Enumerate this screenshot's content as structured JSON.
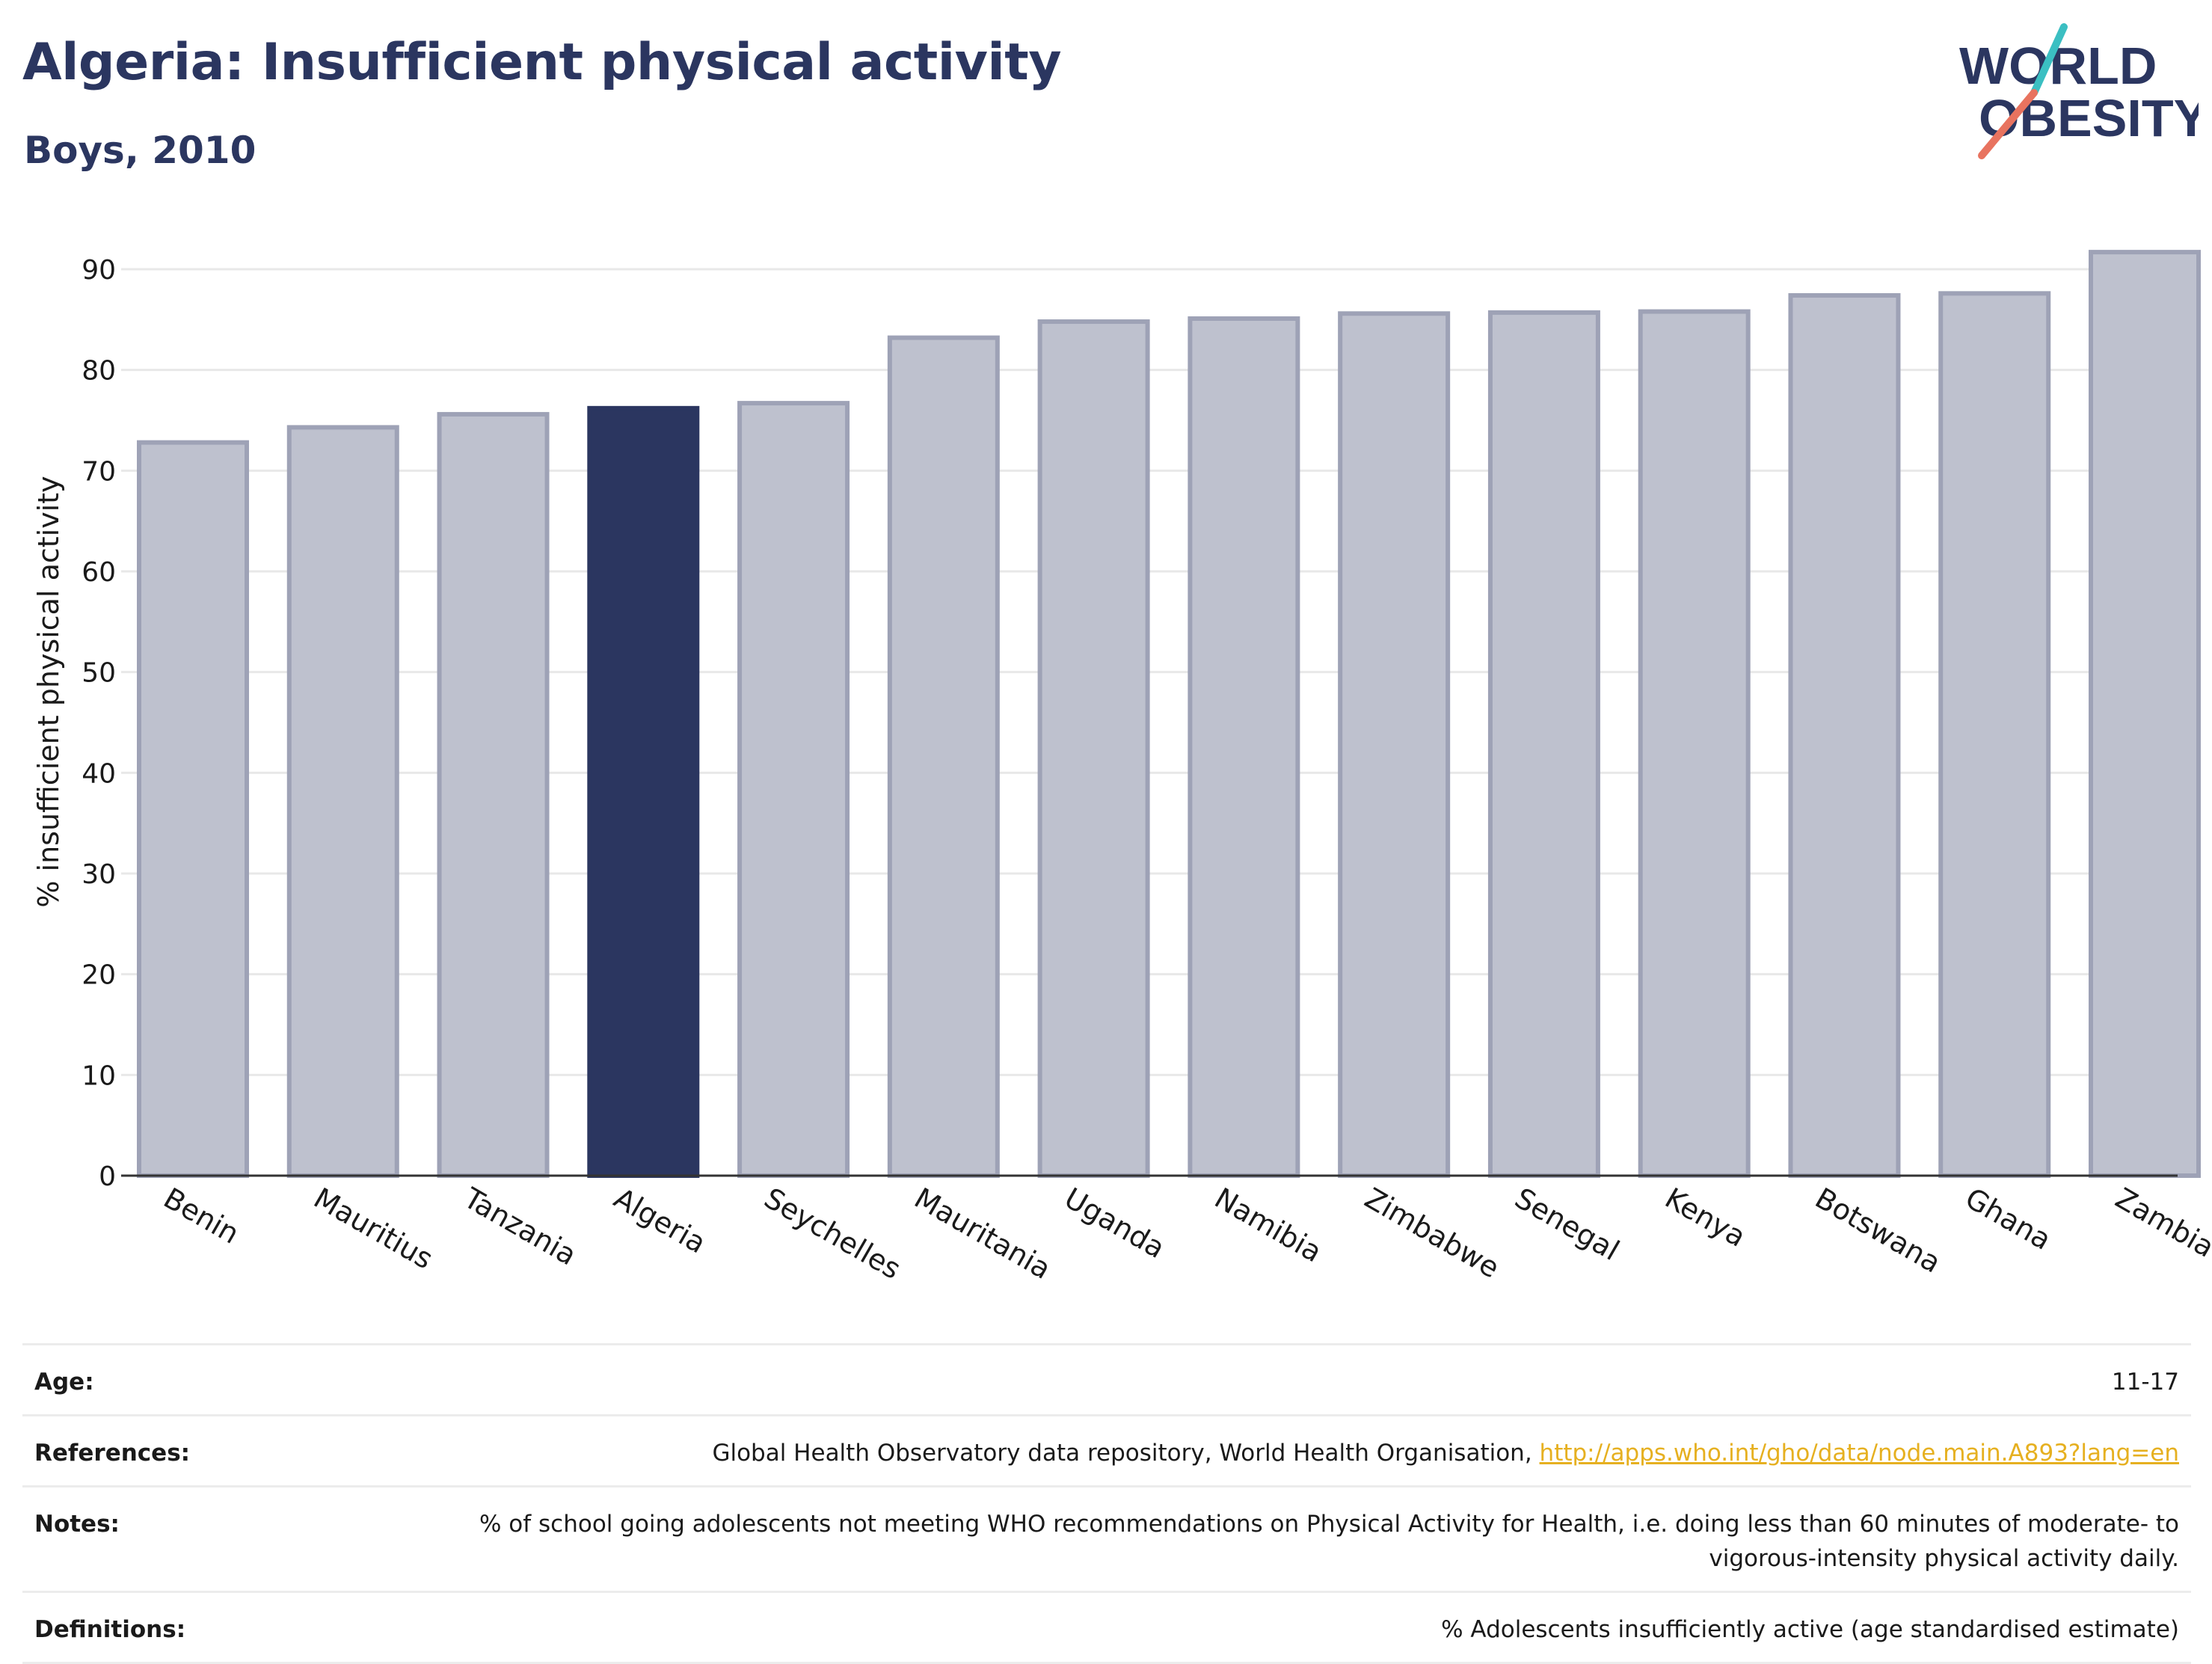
{
  "header": {
    "title": "Algeria: Insufficient physical activity",
    "subtitle": "Boys, 2010"
  },
  "logo": {
    "line1": "WORLD",
    "line2": "OBESITY"
  },
  "colors": {
    "title": "#2b3660",
    "highlight_bar": "#2b3660",
    "other_bar": "#bec1ce",
    "other_bar_border": "#9ea2b6",
    "link": "#e6b020",
    "logo_teal": "#3bbfc2",
    "logo_coral": "#e8735f"
  },
  "chart_data": {
    "type": "bar",
    "categories": [
      "Benin",
      "Mauritius",
      "Tanzania",
      "Algeria",
      "Seychelles",
      "Mauritania",
      "Uganda",
      "Namibia",
      "Zimbabwe",
      "Senegal",
      "Kenya",
      "Botswana",
      "Ghana",
      "Zambia"
    ],
    "values": [
      72.8,
      74.3,
      75.6,
      76.2,
      76.7,
      83.2,
      84.8,
      85.1,
      85.6,
      85.7,
      85.8,
      87.4,
      87.6,
      91.7
    ],
    "highlight": "Algeria",
    "ylabel": "% insufficient physical activity",
    "xlabel": "",
    "ylim": [
      0,
      95
    ],
    "yticks": [
      0,
      10,
      20,
      30,
      40,
      50,
      60,
      70,
      80,
      90
    ],
    "grid": true,
    "legend": "none"
  },
  "meta": {
    "age_label": "Age:",
    "age_value": "11-17",
    "references_label": "References:",
    "references_text": "Global Health Observatory data repository, World Health Organisation, ",
    "references_link": "http://apps.who.int/gho/data/node.main.A893?lang=en",
    "notes_label": "Notes:",
    "notes_value": "% of school going adolescents not meeting WHO recommendations on Physical Activity for Health, i.e. doing less than 60 minutes of moderate- to vigorous-intensity physical activity daily.",
    "definitions_label": "Definitions:",
    "definitions_value": "% Adolescents insufficiently active (age standardised estimate)"
  }
}
